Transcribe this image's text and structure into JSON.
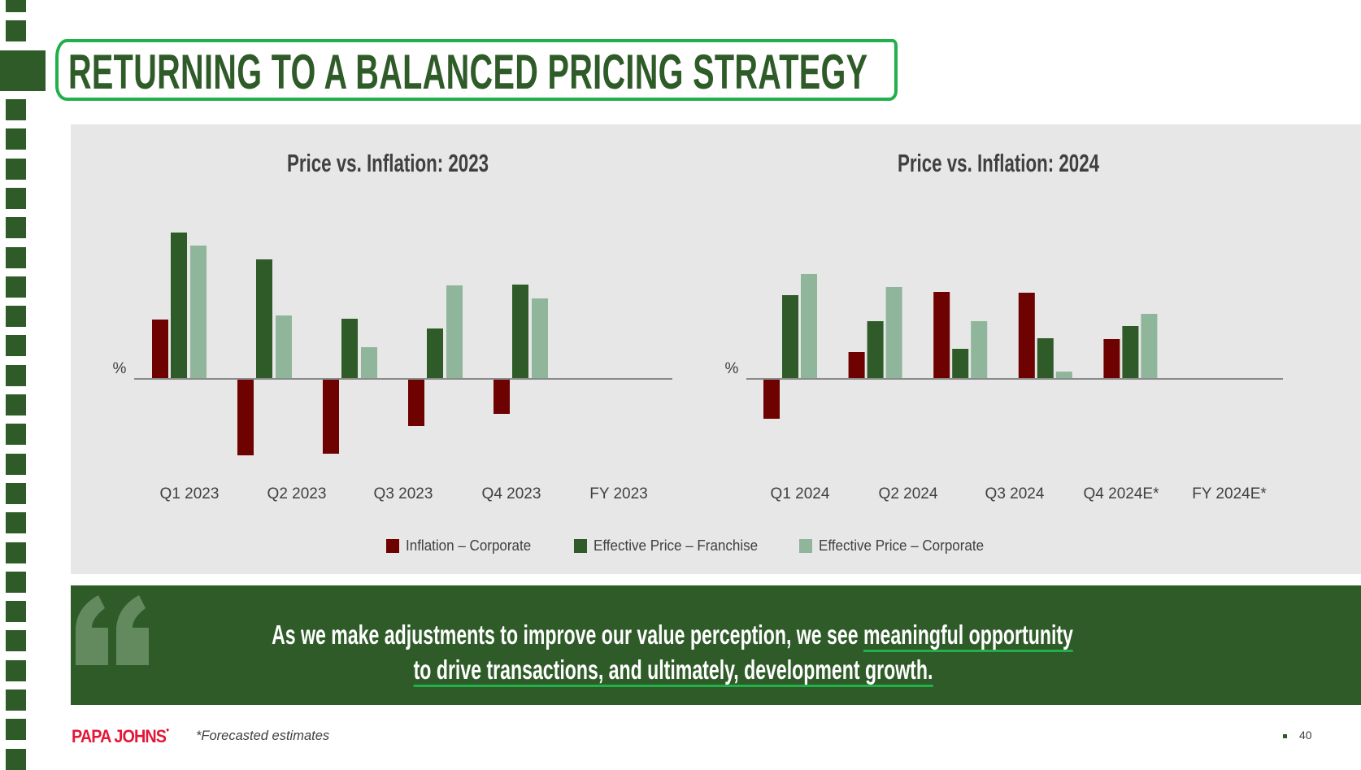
{
  "page": {
    "title": "RETURNING TO A BALANCED PRICING STRATEGY",
    "page_number": "40",
    "footnote": "*Forecasted estimates",
    "logo_text": "PAPA JOHNS",
    "colors": {
      "brand_green": "#2e5b28",
      "accent_green": "#22b04b",
      "panel_gray": "#e7e7e7",
      "logo_red": "#e31837"
    }
  },
  "quote": {
    "icon": "quotation-mark-icon",
    "line1_plain": "As we make adjustments to improve our value perception, we see ",
    "line1_underlined": "meaningful opportunity",
    "line2_underlined": "to drive transactions, and ultimately, development growth."
  },
  "legend": [
    {
      "label": "Inflation – Corporate",
      "color": "#6e0200"
    },
    {
      "label": "Effective Price – Franchise",
      "color": "#2e5b28"
    },
    {
      "label": "Effective Price – Corporate",
      "color": "#8fb69a"
    }
  ],
  "chart_data": [
    {
      "type": "bar",
      "title": "Price vs. Inflation: 2023",
      "ylabel": "%",
      "xlabel": "",
      "note": "No y-axis tick values shown; values are relative magnitudes (unitless) estimated from bar lengths",
      "grid": false,
      "legend_position": "bottom",
      "categories": [
        "Q1 2023",
        "Q2 2023",
        "Q3 2023",
        "Q4 2023",
        "FY 2023"
      ],
      "series": [
        {
          "name": "Inflation – Corporate",
          "color": "#6e0200",
          "values": [
            7.3,
            -9.4,
            -9.2,
            -5.8,
            -4.3
          ]
        },
        {
          "name": "Effective Price – Franchise",
          "color": "#2e5b28",
          "values": [
            18.0,
            14.7,
            7.4,
            6.2,
            11.6
          ]
        },
        {
          "name": "Effective Price – Corporate",
          "color": "#8fb69a",
          "values": [
            16.4,
            7.8,
            3.9,
            11.5,
            9.9
          ]
        }
      ],
      "ylim": [
        -10,
        18
      ]
    },
    {
      "type": "bar",
      "title": "Price vs. Inflation: 2024",
      "ylabel": "%",
      "xlabel": "",
      "note": "No y-axis tick values shown; values are relative magnitudes (unitless) estimated from bar lengths",
      "grid": false,
      "legend_position": "bottom",
      "categories": [
        "Q1 2024",
        "Q2 2024",
        "Q3 2024",
        "Q4 2024E*",
        "FY 2024E*"
      ],
      "series": [
        {
          "name": "Inflation – Corporate",
          "color": "#6e0200",
          "values": [
            -4.9,
            3.3,
            10.7,
            10.6,
            4.9
          ]
        },
        {
          "name": "Effective Price – Franchise",
          "color": "#2e5b28",
          "values": [
            10.3,
            7.1,
            3.7,
            5.0,
            6.5
          ]
        },
        {
          "name": "Effective Price – Corporate",
          "color": "#8fb69a",
          "values": [
            12.9,
            11.3,
            7.1,
            0.9,
            8.0
          ]
        }
      ],
      "ylim": [
        -10,
        18
      ]
    }
  ]
}
